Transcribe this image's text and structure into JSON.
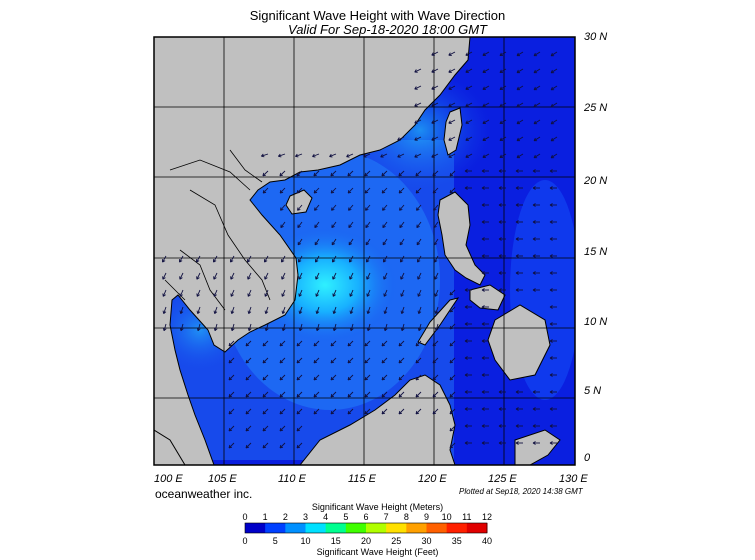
{
  "title": "Significant Wave Height with Wave Direction",
  "subtitle": "Valid For Sep-18-2020 18:00 GMT",
  "lon_labels": [
    "100 E",
    "105 E",
    "110 E",
    "115 E",
    "120 E",
    "125 E",
    "130 E"
  ],
  "lat_labels": [
    "30 N",
    "25 N",
    "20 N",
    "15 N",
    "10 N",
    "5 N",
    "0"
  ],
  "credit": "oceanweather inc.",
  "plotted": "Plotted at Sep18, 2020 14:38 GMT",
  "colorbar": {
    "meters_title": "Significant Wave Height (Meters)",
    "feet_title": "Significant Wave Height (Feet)",
    "meters_ticks": [
      "0",
      "1",
      "2",
      "3",
      "4",
      "5",
      "6",
      "7",
      "8",
      "9",
      "10",
      "11",
      "12"
    ],
    "feet_ticks": [
      "0",
      "5",
      "10",
      "15",
      "20",
      "25",
      "30",
      "35",
      "40"
    ],
    "colors": [
      "#0000c8",
      "#0040ff",
      "#0090ff",
      "#00e0ff",
      "#00ff90",
      "#40ff00",
      "#b0ff00",
      "#ffe000",
      "#ffa000",
      "#ff6000",
      "#ff2000",
      "#e00000"
    ]
  },
  "colors": {
    "land": "#c0c0c0",
    "ocean_deep": "#0a1fe0",
    "ocean_mid": "#1f6cf2",
    "ocean_light": "#20e0ff",
    "arrow": "#101040"
  }
}
